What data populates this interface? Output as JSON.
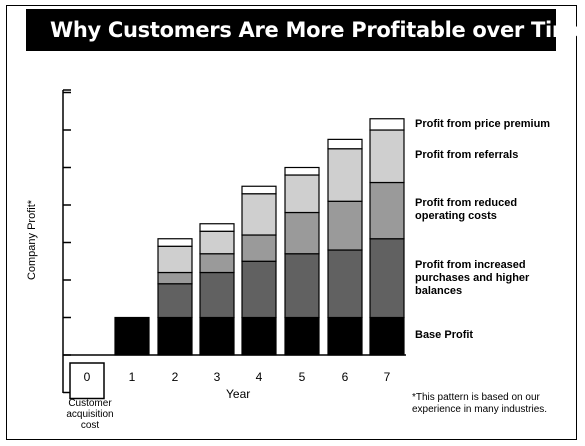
{
  "title": "Why Customers Are More Profitable over Time",
  "chart_data": {
    "type": "bar",
    "stacked": true,
    "title": "Why Customers Are More Profitable over Time",
    "xlabel": "Year",
    "ylabel": "Company Profit*",
    "categories": [
      "0",
      "1",
      "2",
      "3",
      "4",
      "5",
      "6",
      "7"
    ],
    "category_notes": {
      "0": "Customer acquisition cost"
    },
    "ylim": [
      -1,
      8
    ],
    "series": [
      {
        "name": "Base Profit",
        "color": "#000000",
        "values": [
          0,
          1.0,
          1.0,
          1.0,
          1.0,
          1.0,
          1.0,
          1.0
        ]
      },
      {
        "name": "Profit from increased purchases and higher balances",
        "color": "#616161",
        "values": [
          0,
          0,
          0.9,
          1.2,
          1.5,
          1.7,
          1.8,
          2.1
        ]
      },
      {
        "name": "Profit from reduced operating costs",
        "color": "#9a9a9a",
        "values": [
          0,
          0,
          0.3,
          0.5,
          0.7,
          1.1,
          1.3,
          1.5
        ]
      },
      {
        "name": "Profit from referrals",
        "color": "#cfcfcf",
        "values": [
          0,
          0,
          0.7,
          0.6,
          1.1,
          1.0,
          1.4,
          1.4
        ]
      },
      {
        "name": "Profit from price premium",
        "color": "#ffffff",
        "values": [
          0,
          0,
          0.2,
          0.2,
          0.2,
          0.2,
          0.25,
          0.3
        ]
      }
    ],
    "acquisition_cost": [
      -1.0,
      0,
      0,
      0,
      0,
      0,
      0,
      0
    ],
    "grid": false,
    "legend_position": "right"
  },
  "legend_labels": [
    "Profit from price premium",
    "Profit from referrals",
    "Profit from reduced operating costs",
    "Profit from increased purchases and higher balances",
    "Base Profit"
  ],
  "footnote": "*This pattern is based on our experience in many industries.",
  "acquisition_label": "Customer acquisition cost"
}
